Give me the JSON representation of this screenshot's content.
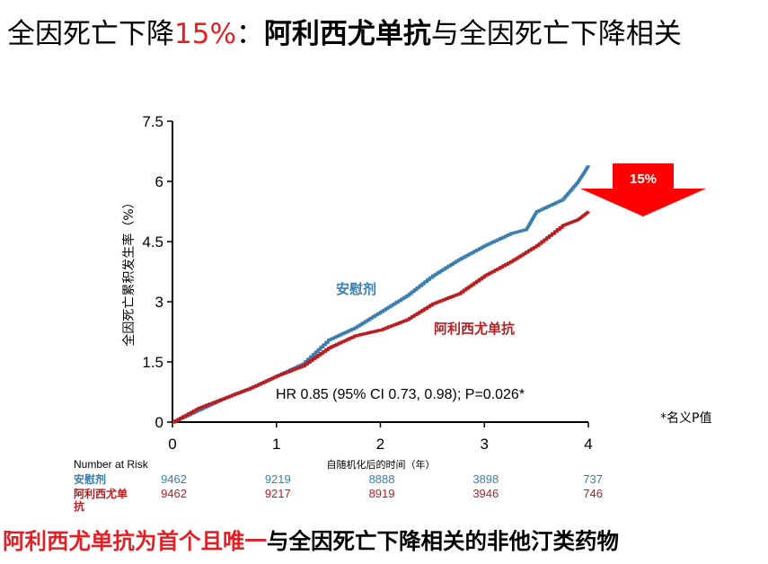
{
  "title": {
    "part1": "全因死亡下降",
    "part2": "15%",
    "part3": "：",
    "part4": "阿利西尤单抗",
    "part5": "与全因死亡下降相关"
  },
  "footer": {
    "red": "阿利西尤单抗为首个且唯一",
    "black": "与全因死亡下降相关的非他汀类药物"
  },
  "note": "*名义P值",
  "colors": {
    "placebo": "#3a7fb0",
    "alirocumab": "#b81e22",
    "accent_red": "#e31e24",
    "arrow": "#ff0000"
  },
  "chart_data": {
    "type": "line",
    "ylabel": "全因死亡累积发生率（%）",
    "xlabel": "自随机化后的时间（年）",
    "ylim": [
      0,
      7.5
    ],
    "xlim": [
      0,
      4
    ],
    "y_ticks": [
      "0",
      "1.5",
      "3",
      "4.5",
      "6",
      "7.5"
    ],
    "x_ticks": [
      "0",
      "1",
      "2",
      "3",
      "4"
    ],
    "annotation": "HR 0.85 (95% CI 0.73, 0.98); P=0.026*",
    "arrow_label": "15%",
    "series": [
      {
        "name": "安慰剂",
        "x": [
          0,
          0.25,
          0.5,
          0.75,
          1.0,
          1.25,
          1.5,
          1.75,
          2.0,
          2.25,
          2.5,
          2.75,
          3.0,
          3.25,
          3.4,
          3.5,
          3.75,
          3.9,
          4.0
        ],
        "y": [
          0,
          0.3,
          0.6,
          0.85,
          1.15,
          1.45,
          2.05,
          2.35,
          2.75,
          3.15,
          3.65,
          4.05,
          4.4,
          4.7,
          4.8,
          5.25,
          5.55,
          6.0,
          6.4
        ]
      },
      {
        "name": "阿利西尤单抗",
        "x": [
          0,
          0.25,
          0.5,
          0.75,
          1.0,
          1.25,
          1.5,
          1.75,
          2.0,
          2.25,
          2.5,
          2.75,
          3.0,
          3.25,
          3.5,
          3.75,
          3.9,
          4.0
        ],
        "y": [
          0,
          0.35,
          0.6,
          0.85,
          1.15,
          1.4,
          1.85,
          2.15,
          2.3,
          2.55,
          2.95,
          3.2,
          3.65,
          4.0,
          4.4,
          4.9,
          5.05,
          5.25
        ]
      }
    ],
    "risk_table": {
      "header": "Number at Risk",
      "rows": [
        {
          "name": "安慰剂",
          "values": [
            "9462",
            "9219",
            "8888",
            "3898",
            "737"
          ]
        },
        {
          "name": "阿利西尤单\n抗",
          "values": [
            "9462",
            "9217",
            "8919",
            "3946",
            "746"
          ]
        }
      ]
    }
  }
}
